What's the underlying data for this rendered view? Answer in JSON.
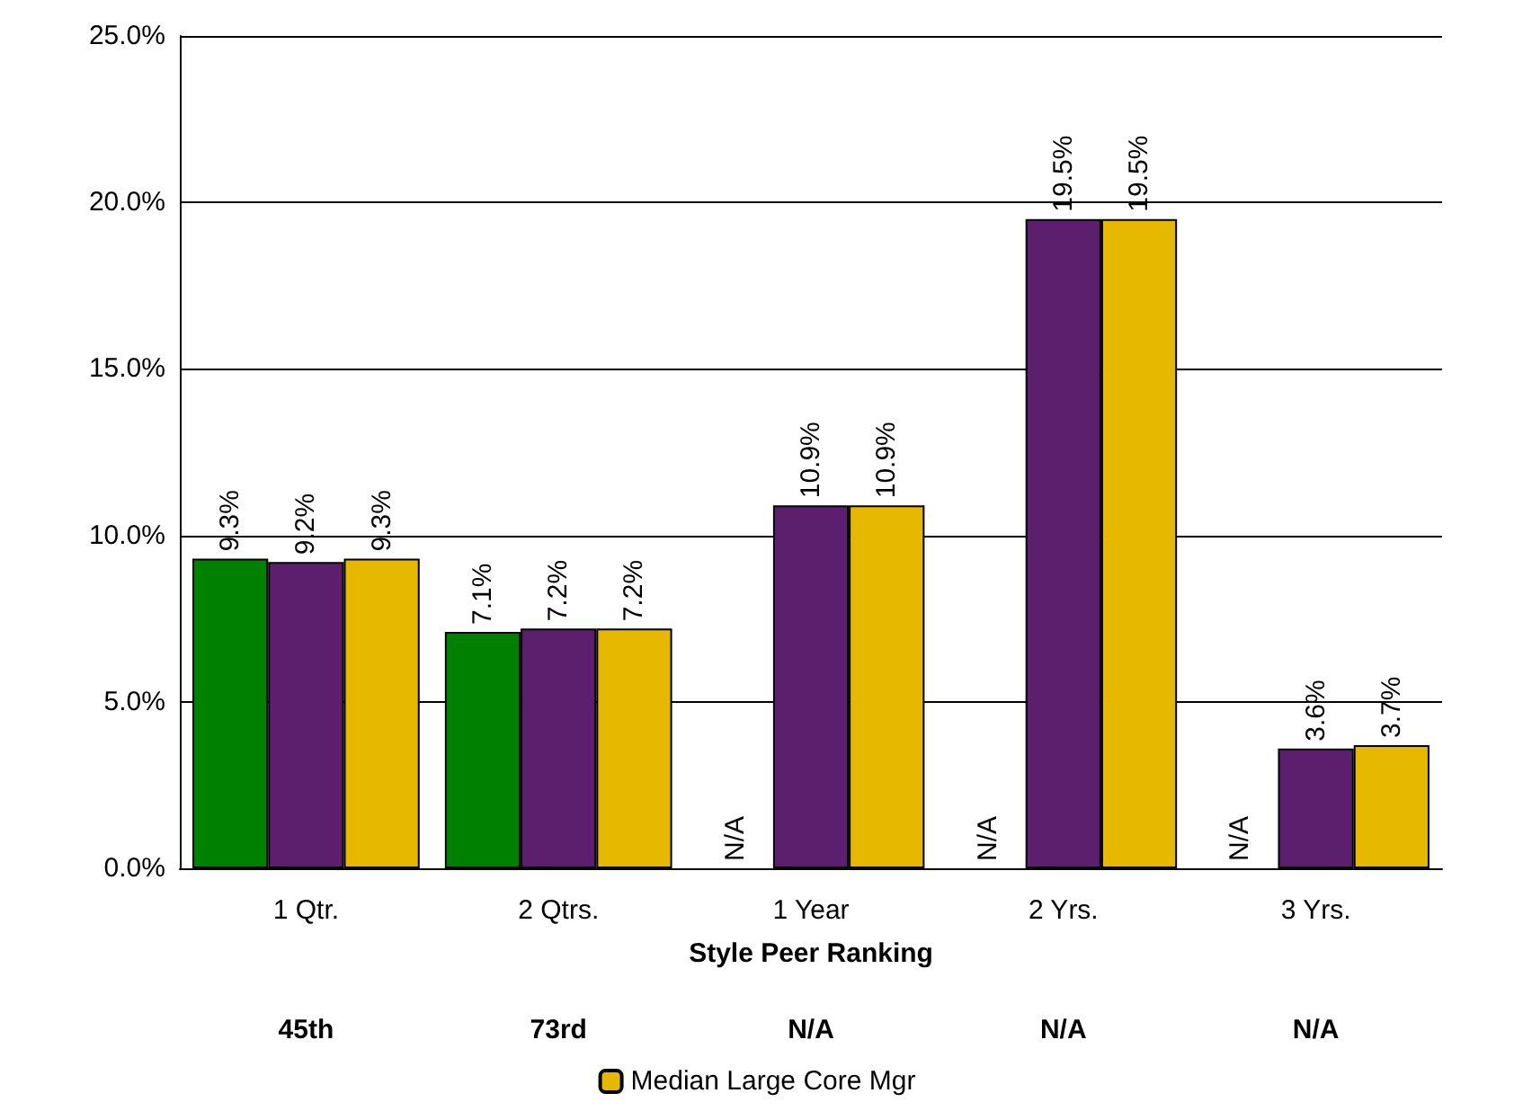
{
  "chart_data": {
    "type": "bar",
    "xlabel": "Style Peer Ranking",
    "categories": [
      "1 Qtr.",
      "2 Qtrs.",
      "1 Year",
      "2 Yrs.",
      "3 Yrs."
    ],
    "series": [
      {
        "color": "#008000",
        "values": [
          9.3,
          7.1,
          null,
          null,
          null
        ],
        "value_labels": [
          "9.3%",
          "7.1%",
          "N/A",
          "N/A",
          "N/A"
        ]
      },
      {
        "color": "#5c1f6e",
        "values": [
          9.2,
          7.2,
          10.9,
          19.5,
          3.6
        ],
        "value_labels": [
          "9.2%",
          "7.2%",
          "10.9%",
          "19.5%",
          "3.6%"
        ]
      },
      {
        "name": "Median Large Core Mgr",
        "color": "#e6b800",
        "values": [
          9.3,
          7.2,
          10.9,
          19.5,
          3.7
        ],
        "value_labels": [
          "9.3%",
          "7.2%",
          "10.9%",
          "19.5%",
          "3.7%"
        ]
      }
    ],
    "ylim": [
      0,
      25
    ],
    "yticks": [
      {
        "value": 0,
        "label": "0.0%"
      },
      {
        "value": 5,
        "label": "5.0%"
      },
      {
        "value": 10,
        "label": "10.0%"
      },
      {
        "value": 15,
        "label": "15.0%"
      },
      {
        "value": 20,
        "label": "20.0%"
      },
      {
        "value": 25,
        "label": "25.0%"
      }
    ],
    "grid": "y",
    "legend": "bottom",
    "annotations": [
      "45th",
      "73rd",
      "N/A",
      "N/A",
      "N/A"
    ]
  }
}
